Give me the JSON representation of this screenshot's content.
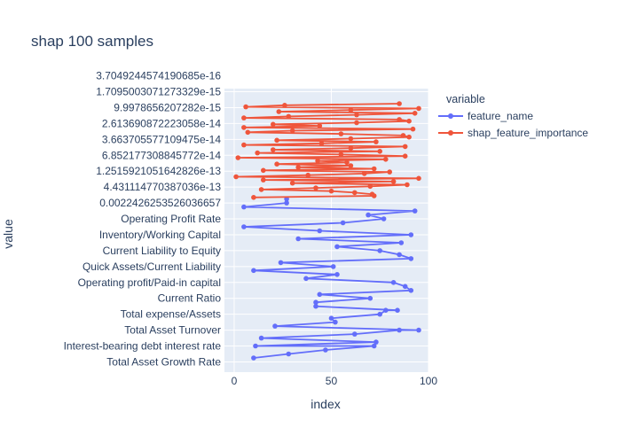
{
  "chart_data": {
    "type": "line",
    "title": "shap 100 samples",
    "xlabel": "index",
    "ylabel": "value",
    "xlim": [
      -5,
      100
    ],
    "x_ticks": [
      0,
      50,
      100
    ],
    "grid": true,
    "legend_title": "variable",
    "legend_placement": "top-right",
    "y_tick_labels": [
      "Total Asset Growth Rate",
      "Interest-bearing debt interest rate",
      "Total Asset Turnover",
      "Total expense/Assets",
      "Current Ratio",
      "Operating profit/Paid-in capital",
      "Quick Assets/Current Liability",
      "Current Liability to Equity",
      "Inventory/Working Capital",
      "Operating Profit Rate",
      "0.0022426253526036657",
      "4.431114770387036e-13",
      "1.2515921051642826e-13",
      "6.852177308845772e-14",
      "3.663705577109475e-14",
      "2.613690872223058e-14",
      "9.9978656207282e-15",
      "1.7095003071273329e-15",
      "3.7049244574190685e-16"
    ],
    "series": [
      {
        "name": "feature_name",
        "color": "#636efa",
        "x": [
          10,
          28,
          47,
          72,
          11,
          73,
          14,
          62,
          85,
          95,
          21,
          52,
          50,
          75,
          78,
          84,
          42,
          42,
          70,
          44,
          91,
          88,
          82,
          37,
          53,
          10,
          51,
          24,
          91,
          85,
          75,
          53,
          86,
          33,
          91,
          44,
          5,
          56,
          77,
          69,
          93,
          5,
          27,
          27
        ],
        "y": [
          0,
          0.5,
          1,
          1.5,
          1.5,
          2,
          2.5,
          3,
          3.5,
          3.5,
          4,
          4.5,
          5,
          5.5,
          6,
          6,
          6.5,
          7,
          7.5,
          8,
          8.5,
          9,
          9.5,
          10,
          10.5,
          11,
          11.5,
          12,
          12.5,
          13,
          13.5,
          14,
          14.5,
          15,
          15.5,
          16,
          16.5,
          17,
          17.5,
          18,
          18.5,
          19,
          19.5,
          20
        ]
      },
      {
        "name": "shap_feature_importance",
        "color": "#ef553b",
        "x": [
          10,
          72,
          71,
          62,
          50,
          14,
          42,
          70,
          89,
          30,
          82,
          15,
          95,
          1,
          38,
          67,
          80,
          15,
          72,
          33,
          60,
          22,
          58,
          43,
          78,
          2,
          88,
          55,
          12,
          75,
          20,
          60,
          88,
          5,
          45,
          73,
          22,
          60,
          90,
          87,
          55,
          7,
          30,
          92,
          5,
          44,
          20,
          63,
          90,
          85,
          5,
          28,
          63,
          93,
          23,
          60,
          95,
          6,
          26,
          85
        ],
        "y": [
          20.2,
          20.4,
          20.6,
          20.8,
          21,
          21.2,
          21.4,
          21.6,
          21.8,
          22,
          22.2,
          22.4,
          22.6,
          22.8,
          23,
          23.2,
          23.4,
          23.6,
          23.8,
          24,
          24.2,
          24.4,
          24.6,
          24.8,
          25,
          25.2,
          25.4,
          25.6,
          25.8,
          26,
          26.2,
          26.4,
          26.6,
          26.8,
          27,
          27.2,
          27.4,
          27.6,
          27.8,
          28,
          28.2,
          28.4,
          28.6,
          28.8,
          29,
          29.2,
          29.4,
          29.6,
          29.8,
          30,
          30.2,
          30.4,
          30.6,
          30.8,
          31,
          31.2,
          31.4,
          31.6,
          31.8,
          32
        ]
      }
    ]
  }
}
